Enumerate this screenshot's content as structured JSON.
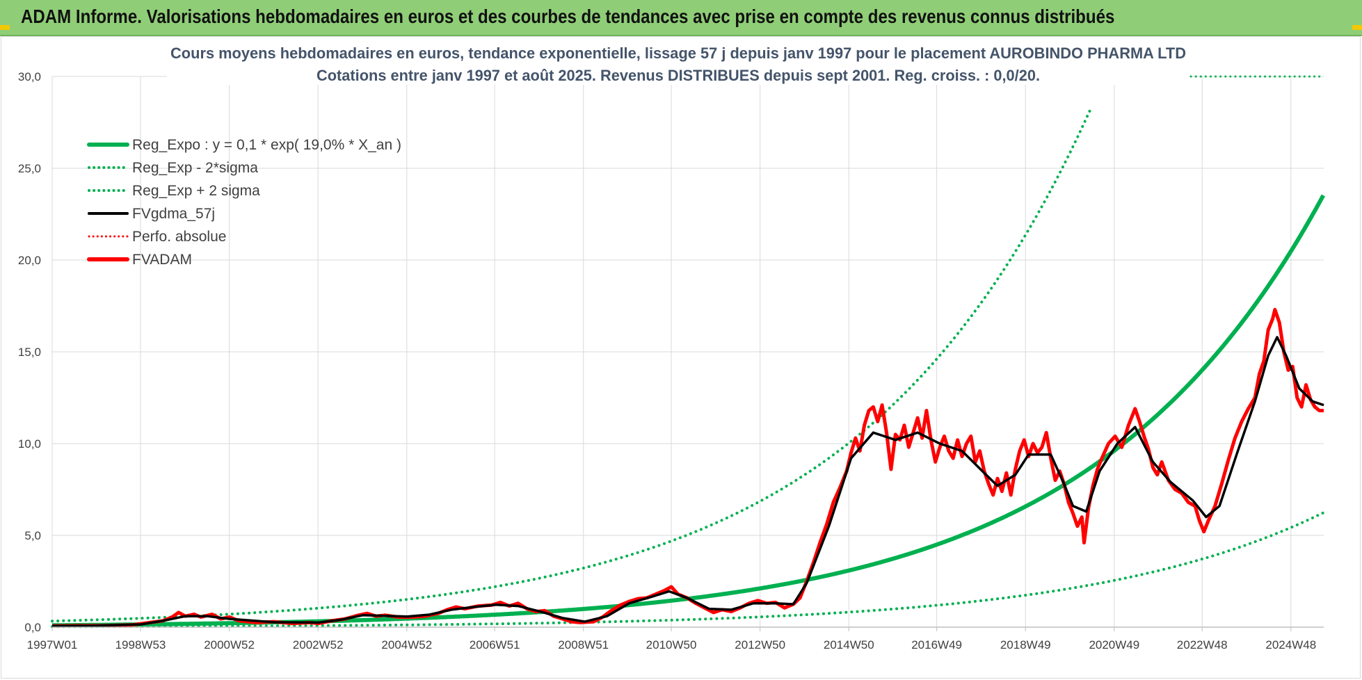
{
  "banner": {
    "title": "ADAM Informe. Valorisations hebdomadaires en euros et des courbes de tendances avec prise en compte des revenus connus distribués"
  },
  "colors": {
    "banner_bg": "#8fce77",
    "reg_expo": "#00b050",
    "fvgdma": "#000000",
    "fvadam": "#ff0000",
    "perfo": "#ff0000",
    "grid": "#d9d9d9",
    "title_text": "#44546a"
  },
  "chart_data": {
    "type": "line",
    "title": "Cours moyens hebdomadaires en euros, tendance exponentielle, lissage 57 j depuis janv 1997 pour le placement AUROBINDO PHARMA LTD",
    "subtitle": "Cotations entre janv 1997 et août 2025.  Revenus DISTRIBUES depuis sept 2001.  Reg. croiss. : 0,0/20.",
    "ylim": [
      0,
      30
    ],
    "yticks": [
      "0,0",
      "5,0",
      "10,0",
      "15,0",
      "20,0",
      "25,0",
      "30,0"
    ],
    "xlim": [
      1997.0,
      2025.65
    ],
    "xticks": [
      {
        "label": "1997W01",
        "x": 1997.0
      },
      {
        "label": "1998W53",
        "x": 1998.99
      },
      {
        "label": "2000W52",
        "x": 2000.99
      },
      {
        "label": "2002W52",
        "x": 2002.99
      },
      {
        "label": "2004W52",
        "x": 2004.99
      },
      {
        "label": "2006W51",
        "x": 2006.97
      },
      {
        "label": "2008W51",
        "x": 2008.97
      },
      {
        "label": "2010W50",
        "x": 2010.95
      },
      {
        "label": "2012W50",
        "x": 2012.95
      },
      {
        "label": "2014W50",
        "x": 2014.95
      },
      {
        "label": "2016W49",
        "x": 2016.93
      },
      {
        "label": "2018W49",
        "x": 2018.93
      },
      {
        "label": "2020W49",
        "x": 2020.93
      },
      {
        "label": "2022W48",
        "x": 2022.91
      },
      {
        "label": "2024W48",
        "x": 2024.91
      }
    ],
    "legend": [
      {
        "name": "Reg_Expo : y = 0,1 * exp( 19,0% *  X_an )",
        "color": "#00b050",
        "style": "solid",
        "width": 6
      },
      {
        "name": "Reg_Exp - 2*sigma",
        "color": "#00b050",
        "style": "dotted",
        "width": 4
      },
      {
        "name": "Reg_Exp + 2 sigma",
        "color": "#00b050",
        "style": "dotted",
        "width": 4
      },
      {
        "name": "FVgdma_57j",
        "color": "#000000",
        "style": "solid",
        "width": 4
      },
      {
        "name": "Perfo. absolue",
        "color": "#ff0000",
        "style": "dotted",
        "width": 3
      },
      {
        "name": "FVADAM",
        "color": "#ff0000",
        "style": "solid",
        "width": 6
      }
    ],
    "legend_position": "top-left",
    "grid": true,
    "series": [
      {
        "name": "FVADAM",
        "color": "#ff0000",
        "points": [
          [
            1997.0,
            0.07
          ],
          [
            1997.6,
            0.08
          ],
          [
            1998.2,
            0.08
          ],
          [
            1998.8,
            0.12
          ],
          [
            1999.2,
            0.25
          ],
          [
            1999.5,
            0.35
          ],
          [
            1999.7,
            0.55
          ],
          [
            1999.85,
            0.8
          ],
          [
            2000.0,
            0.6
          ],
          [
            2000.2,
            0.7
          ],
          [
            2000.35,
            0.55
          ],
          [
            2000.6,
            0.7
          ],
          [
            2000.8,
            0.45
          ],
          [
            2001.0,
            0.55
          ],
          [
            2001.2,
            0.35
          ],
          [
            2001.6,
            0.25
          ],
          [
            2002.0,
            0.3
          ],
          [
            2002.4,
            0.2
          ],
          [
            2002.8,
            0.25
          ],
          [
            2003.0,
            0.2
          ],
          [
            2003.3,
            0.35
          ],
          [
            2003.6,
            0.45
          ],
          [
            2003.9,
            0.65
          ],
          [
            2004.1,
            0.75
          ],
          [
            2004.3,
            0.6
          ],
          [
            2004.5,
            0.65
          ],
          [
            2004.8,
            0.55
          ],
          [
            2005.1,
            0.55
          ],
          [
            2005.4,
            0.6
          ],
          [
            2005.7,
            0.75
          ],
          [
            2005.9,
            0.95
          ],
          [
            2006.1,
            1.1
          ],
          [
            2006.3,
            1.0
          ],
          [
            2006.6,
            1.15
          ],
          [
            2006.9,
            1.2
          ],
          [
            2007.1,
            1.35
          ],
          [
            2007.3,
            1.15
          ],
          [
            2007.5,
            1.3
          ],
          [
            2007.7,
            1.0
          ],
          [
            2007.9,
            0.85
          ],
          [
            2008.1,
            0.9
          ],
          [
            2008.3,
            0.6
          ],
          [
            2008.5,
            0.45
          ],
          [
            2008.7,
            0.3
          ],
          [
            2008.9,
            0.25
          ],
          [
            2009.2,
            0.3
          ],
          [
            2009.4,
            0.55
          ],
          [
            2009.6,
            0.9
          ],
          [
            2009.8,
            1.2
          ],
          [
            2010.0,
            1.4
          ],
          [
            2010.2,
            1.55
          ],
          [
            2010.4,
            1.6
          ],
          [
            2010.6,
            1.8
          ],
          [
            2010.8,
            2.0
          ],
          [
            2010.95,
            2.2
          ],
          [
            2011.1,
            1.8
          ],
          [
            2011.3,
            1.6
          ],
          [
            2011.5,
            1.3
          ],
          [
            2011.7,
            1.05
          ],
          [
            2011.9,
            0.8
          ],
          [
            2012.1,
            0.95
          ],
          [
            2012.3,
            0.85
          ],
          [
            2012.5,
            1.05
          ],
          [
            2012.7,
            1.3
          ],
          [
            2012.9,
            1.45
          ],
          [
            2013.1,
            1.3
          ],
          [
            2013.3,
            1.35
          ],
          [
            2013.5,
            1.05
          ],
          [
            2013.7,
            1.25
          ],
          [
            2013.85,
            1.6
          ],
          [
            2014.0,
            2.5
          ],
          [
            2014.15,
            3.5
          ],
          [
            2014.3,
            4.6
          ],
          [
            2014.45,
            5.6
          ],
          [
            2014.6,
            6.8
          ],
          [
            2014.75,
            7.6
          ],
          [
            2014.9,
            8.5
          ],
          [
            2015.0,
            9.5
          ],
          [
            2015.1,
            10.3
          ],
          [
            2015.2,
            9.6
          ],
          [
            2015.3,
            11.0
          ],
          [
            2015.4,
            11.8
          ],
          [
            2015.5,
            12.0
          ],
          [
            2015.6,
            11.2
          ],
          [
            2015.7,
            12.1
          ],
          [
            2015.8,
            10.6
          ],
          [
            2015.9,
            8.6
          ],
          [
            2016.0,
            10.5
          ],
          [
            2016.1,
            10.2
          ],
          [
            2016.2,
            11.0
          ],
          [
            2016.3,
            9.8
          ],
          [
            2016.4,
            10.6
          ],
          [
            2016.5,
            11.4
          ],
          [
            2016.6,
            10.3
          ],
          [
            2016.7,
            11.8
          ],
          [
            2016.8,
            10.2
          ],
          [
            2016.9,
            9.0
          ],
          [
            2017.0,
            9.8
          ],
          [
            2017.1,
            10.4
          ],
          [
            2017.2,
            9.6
          ],
          [
            2017.3,
            9.2
          ],
          [
            2017.4,
            10.2
          ],
          [
            2017.5,
            9.3
          ],
          [
            2017.6,
            10.0
          ],
          [
            2017.7,
            10.4
          ],
          [
            2017.8,
            9.0
          ],
          [
            2017.9,
            9.6
          ],
          [
            2018.0,
            8.5
          ],
          [
            2018.1,
            7.8
          ],
          [
            2018.2,
            7.2
          ],
          [
            2018.3,
            8.1
          ],
          [
            2018.4,
            7.4
          ],
          [
            2018.5,
            8.4
          ],
          [
            2018.6,
            7.2
          ],
          [
            2018.7,
            8.6
          ],
          [
            2018.8,
            9.6
          ],
          [
            2018.9,
            10.2
          ],
          [
            2019.0,
            9.3
          ],
          [
            2019.1,
            10.0
          ],
          [
            2019.2,
            9.5
          ],
          [
            2019.3,
            9.8
          ],
          [
            2019.4,
            10.6
          ],
          [
            2019.5,
            9.2
          ],
          [
            2019.6,
            8.0
          ],
          [
            2019.7,
            8.5
          ],
          [
            2019.8,
            7.8
          ],
          [
            2019.9,
            6.8
          ],
          [
            2020.0,
            6.2
          ],
          [
            2020.1,
            5.5
          ],
          [
            2020.2,
            6.0
          ],
          [
            2020.25,
            4.6
          ],
          [
            2020.35,
            6.5
          ],
          [
            2020.45,
            7.7
          ],
          [
            2020.55,
            8.6
          ],
          [
            2020.65,
            9.2
          ],
          [
            2020.8,
            10.0
          ],
          [
            2020.95,
            10.4
          ],
          [
            2021.1,
            9.8
          ],
          [
            2021.25,
            11.0
          ],
          [
            2021.4,
            11.9
          ],
          [
            2021.5,
            11.2
          ],
          [
            2021.6,
            10.4
          ],
          [
            2021.7,
            9.7
          ],
          [
            2021.8,
            8.7
          ],
          [
            2021.9,
            8.3
          ],
          [
            2022.0,
            9.0
          ],
          [
            2022.15,
            8.0
          ],
          [
            2022.3,
            7.5
          ],
          [
            2022.45,
            7.3
          ],
          [
            2022.6,
            6.8
          ],
          [
            2022.75,
            6.6
          ],
          [
            2022.85,
            5.8
          ],
          [
            2022.95,
            5.2
          ],
          [
            2023.05,
            5.8
          ],
          [
            2023.2,
            6.6
          ],
          [
            2023.35,
            7.8
          ],
          [
            2023.5,
            9.1
          ],
          [
            2023.65,
            10.3
          ],
          [
            2023.8,
            11.2
          ],
          [
            2023.95,
            11.9
          ],
          [
            2024.1,
            12.5
          ],
          [
            2024.2,
            13.8
          ],
          [
            2024.3,
            14.5
          ],
          [
            2024.4,
            16.2
          ],
          [
            2024.5,
            16.8
          ],
          [
            2024.55,
            17.3
          ],
          [
            2024.65,
            16.6
          ],
          [
            2024.75,
            15.0
          ],
          [
            2024.85,
            14.0
          ],
          [
            2024.95,
            14.2
          ],
          [
            2025.05,
            12.5
          ],
          [
            2025.15,
            12.0
          ],
          [
            2025.25,
            13.2
          ],
          [
            2025.35,
            12.4
          ],
          [
            2025.45,
            12.0
          ],
          [
            2025.55,
            11.8
          ],
          [
            2025.65,
            11.8
          ]
        ]
      },
      {
        "name": "FVgdma_57j",
        "color": "#000000",
        "points": [
          [
            1997.0,
            0.07
          ],
          [
            1998.0,
            0.08
          ],
          [
            1999.0,
            0.15
          ],
          [
            1999.5,
            0.35
          ],
          [
            2000.0,
            0.6
          ],
          [
            2000.5,
            0.6
          ],
          [
            2001.0,
            0.45
          ],
          [
            2002.0,
            0.27
          ],
          [
            2003.0,
            0.25
          ],
          [
            2003.5,
            0.4
          ],
          [
            2004.0,
            0.65
          ],
          [
            2005.0,
            0.58
          ],
          [
            2005.5,
            0.68
          ],
          [
            2006.0,
            0.95
          ],
          [
            2006.5,
            1.1
          ],
          [
            2007.0,
            1.22
          ],
          [
            2007.5,
            1.15
          ],
          [
            2008.0,
            0.85
          ],
          [
            2008.5,
            0.5
          ],
          [
            2009.0,
            0.3
          ],
          [
            2009.5,
            0.6
          ],
          [
            2010.0,
            1.3
          ],
          [
            2010.5,
            1.65
          ],
          [
            2010.9,
            1.95
          ],
          [
            2011.3,
            1.6
          ],
          [
            2011.8,
            1.0
          ],
          [
            2012.3,
            0.95
          ],
          [
            2012.8,
            1.3
          ],
          [
            2013.3,
            1.3
          ],
          [
            2013.7,
            1.25
          ],
          [
            2014.0,
            2.4
          ],
          [
            2014.5,
            5.5
          ],
          [
            2015.0,
            9.2
          ],
          [
            2015.5,
            10.6
          ],
          [
            2016.0,
            10.2
          ],
          [
            2016.5,
            10.6
          ],
          [
            2017.0,
            10.0
          ],
          [
            2017.5,
            9.6
          ],
          [
            2018.0,
            8.4
          ],
          [
            2018.3,
            7.7
          ],
          [
            2018.7,
            8.3
          ],
          [
            2019.0,
            9.4
          ],
          [
            2019.5,
            9.4
          ],
          [
            2019.8,
            7.8
          ],
          [
            2020.0,
            6.6
          ],
          [
            2020.3,
            6.3
          ],
          [
            2020.6,
            8.5
          ],
          [
            2021.0,
            10.0
          ],
          [
            2021.4,
            10.9
          ],
          [
            2021.8,
            9.0
          ],
          [
            2022.2,
            7.9
          ],
          [
            2022.7,
            6.9
          ],
          [
            2023.0,
            6.0
          ],
          [
            2023.3,
            6.6
          ],
          [
            2023.7,
            9.5
          ],
          [
            2024.1,
            12.3
          ],
          [
            2024.4,
            14.8
          ],
          [
            2024.6,
            15.8
          ],
          [
            2024.8,
            14.8
          ],
          [
            2025.1,
            13.0
          ],
          [
            2025.4,
            12.3
          ],
          [
            2025.65,
            12.1
          ]
        ]
      }
    ],
    "regression": {
      "reg_expo": {
        "a": 0.1,
        "rate": 0.19,
        "x0": 1996.9
      },
      "minus_2_sigma": {
        "factor": 0.265
      },
      "plus_2_sigma": {
        "factor": 3.25
      }
    }
  }
}
